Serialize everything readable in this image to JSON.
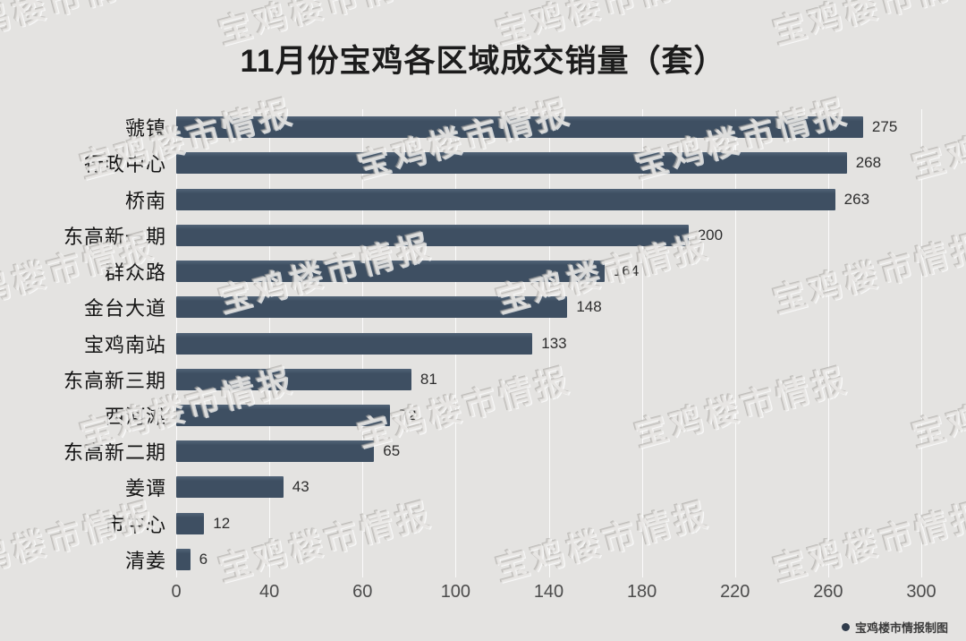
{
  "title": "11月份宝鸡各区域成交销量（套）",
  "watermark": {
    "text": "宝鸡楼市情报"
  },
  "credit": {
    "label": "宝鸡楼市情报制图"
  },
  "chart_data": {
    "type": "bar",
    "orientation": "horizontal",
    "title": "11月份宝鸡各区域成交销量（套）",
    "categories": [
      "虢镇",
      "行政中心",
      "桥南",
      "东高新一期",
      "群众路",
      "金台大道",
      "宝鸡南站",
      "东高新三期",
      "西河滩",
      "东高新二期",
      "姜谭",
      "市中心",
      "清姜"
    ],
    "values": [
      275,
      268,
      263,
      200,
      164,
      148,
      133,
      81,
      72,
      65,
      43,
      12,
      6
    ],
    "value_labels_shown": true,
    "x_axis": {
      "tick_labels": [
        "0",
        "40",
        "60",
        "100",
        "140",
        "180",
        "220",
        "260",
        "300"
      ],
      "ticks": [
        0,
        40,
        60,
        100,
        140,
        180,
        220,
        260,
        300
      ]
    },
    "grid": true,
    "legend": null,
    "colors": {
      "bar": "#3e4f62",
      "background": "#e4e3e1",
      "gridline": "#ffffff",
      "value_label": "#2e2e2e",
      "tick_label": "#4c4c4c"
    }
  }
}
